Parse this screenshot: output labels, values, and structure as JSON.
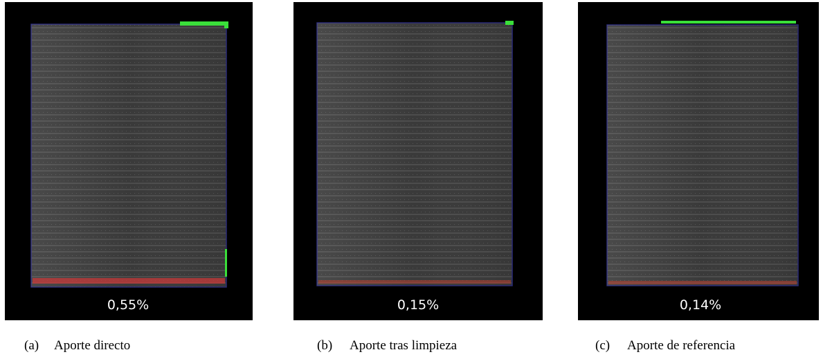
{
  "panels": [
    {
      "value_text": "0,55%",
      "letter": "(a)",
      "caption": "Aporte directo"
    },
    {
      "value_text": "0,15%",
      "letter": "(b)",
      "caption": "Aporte tras limpieza"
    },
    {
      "value_text": "0,14%",
      "letter": "(c)",
      "caption": "Aporte de referencia"
    }
  ]
}
